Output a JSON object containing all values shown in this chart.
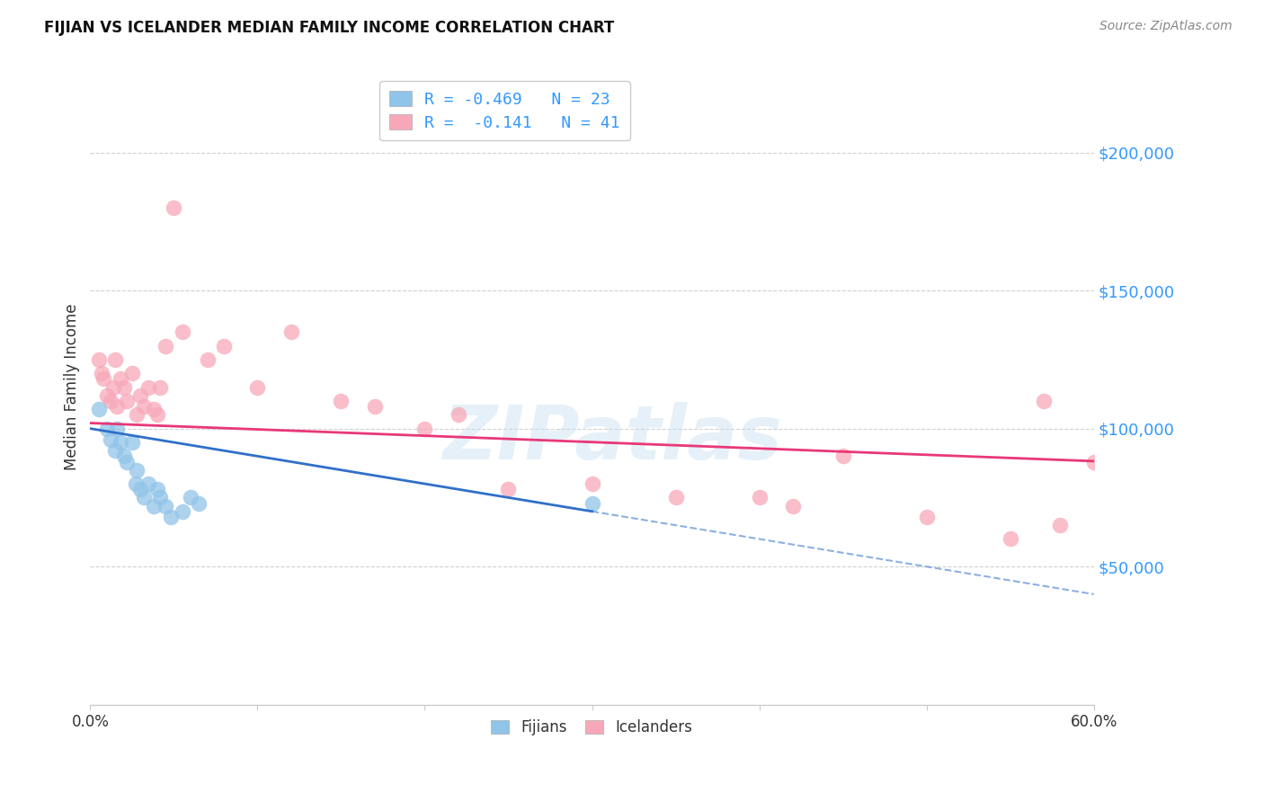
{
  "title": "FIJIAN VS ICELANDER MEDIAN FAMILY INCOME CORRELATION CHART",
  "source": "Source: ZipAtlas.com",
  "ylabel": "Median Family Income",
  "ytick_labels": [
    "$50,000",
    "$100,000",
    "$150,000",
    "$200,000"
  ],
  "ytick_values": [
    50000,
    100000,
    150000,
    200000
  ],
  "ymin": 0,
  "ymax": 230000,
  "xmin": 0.0,
  "xmax": 0.6,
  "fijian_color": "#90c4e8",
  "icelander_color": "#f7a8b8",
  "fijian_line_color": "#3070c8",
  "icelander_line_color": "#e83878",
  "watermark_text": "ZIPatlas",
  "fijian_x": [
    0.005,
    0.01,
    0.012,
    0.015,
    0.016,
    0.018,
    0.02,
    0.022,
    0.025,
    0.027,
    0.028,
    0.03,
    0.032,
    0.035,
    0.038,
    0.04,
    0.042,
    0.045,
    0.048,
    0.055,
    0.06,
    0.065,
    0.3
  ],
  "fijian_y": [
    107000,
    100000,
    96000,
    92000,
    100000,
    95000,
    90000,
    88000,
    95000,
    80000,
    85000,
    78000,
    75000,
    80000,
    72000,
    78000,
    75000,
    72000,
    68000,
    70000,
    75000,
    73000,
    73000
  ],
  "icelander_x": [
    0.005,
    0.007,
    0.008,
    0.01,
    0.012,
    0.014,
    0.015,
    0.016,
    0.018,
    0.02,
    0.022,
    0.025,
    0.028,
    0.03,
    0.032,
    0.035,
    0.038,
    0.04,
    0.042,
    0.045,
    0.05,
    0.055,
    0.07,
    0.08,
    0.1,
    0.12,
    0.15,
    0.17,
    0.2,
    0.22,
    0.25,
    0.3,
    0.35,
    0.4,
    0.42,
    0.45,
    0.5,
    0.55,
    0.57,
    0.58,
    0.6
  ],
  "icelander_y": [
    125000,
    120000,
    118000,
    112000,
    110000,
    115000,
    125000,
    108000,
    118000,
    115000,
    110000,
    120000,
    105000,
    112000,
    108000,
    115000,
    107000,
    105000,
    115000,
    130000,
    180000,
    135000,
    125000,
    130000,
    115000,
    135000,
    110000,
    108000,
    100000,
    105000,
    78000,
    80000,
    75000,
    75000,
    72000,
    90000,
    68000,
    60000,
    110000,
    65000,
    88000
  ],
  "background_color": "#ffffff",
  "grid_color": "#d0d0d0"
}
